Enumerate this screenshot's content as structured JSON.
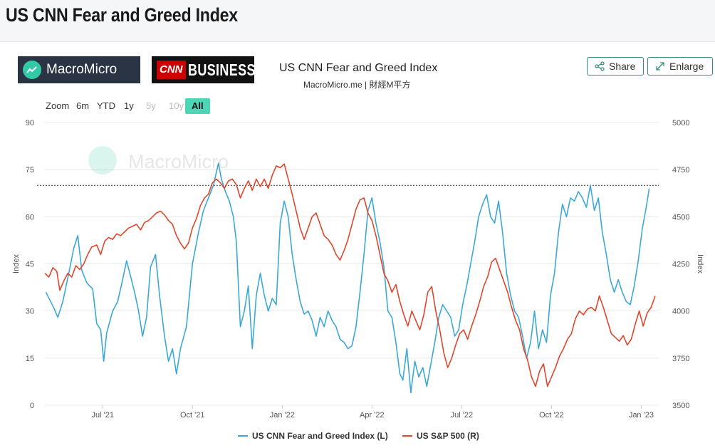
{
  "page": {
    "title": "US CNN Fear and Greed Index"
  },
  "header": {
    "logo_macromicro": "MacroMicro",
    "logo_cnn": "CNN",
    "logo_business": "BUSINESS",
    "share_label": "Share",
    "enlarge_label": "Enlarge"
  },
  "zoom": {
    "label": "Zoom",
    "options": [
      "6m",
      "YTD",
      "1y",
      "5y",
      "10y",
      "All"
    ],
    "selected": "All"
  },
  "colors": {
    "fear_greed": "#3ba8d8",
    "sp500": "#e0462b",
    "accent": "#4dd5b6"
  },
  "chart_data": {
    "type": "line",
    "title": "US CNN Fear and Greed Index",
    "subtitle": "MacroMicro.me | 財經M平方",
    "watermark": "MacroMicro",
    "x_labels": [
      "Jul '21",
      "Oct '21",
      "Jan '22",
      "Apr '22",
      "Jul '22",
      "Oct '22",
      "Jan '23"
    ],
    "x_range": [
      "2021-05",
      "2023-02"
    ],
    "y_left": {
      "label": "Index",
      "min": 0,
      "max": 90,
      "ticks": [
        0,
        15,
        30,
        45,
        60,
        75,
        90
      ]
    },
    "y_right": {
      "label": "Index",
      "min": 3500,
      "max": 5000,
      "ticks": [
        3500,
        3750,
        4000,
        4250,
        4500,
        4750,
        5000
      ]
    },
    "reference_line": {
      "axis": "left",
      "value": 70,
      "style": "dotted"
    },
    "series": [
      {
        "name": "US CNN Fear and Greed Index (L)",
        "axis": "left",
        "values": [
          [
            0.1,
            36
          ],
          [
            0.9,
            31
          ],
          [
            1.3,
            28
          ],
          [
            1.8,
            33
          ],
          [
            2.4,
            42
          ],
          [
            2.9,
            50
          ],
          [
            3.3,
            54
          ],
          [
            3.7,
            43
          ],
          [
            4.2,
            39
          ],
          [
            4.8,
            37
          ],
          [
            5.2,
            26
          ],
          [
            5.6,
            24
          ],
          [
            5.9,
            14
          ],
          [
            6.2,
            23
          ],
          [
            6.8,
            30
          ],
          [
            7.3,
            33
          ],
          [
            7.8,
            40
          ],
          [
            8.2,
            46
          ],
          [
            8.6,
            41
          ],
          [
            9.0,
            36
          ],
          [
            9.4,
            30
          ],
          [
            9.8,
            22
          ],
          [
            10.2,
            28
          ],
          [
            10.6,
            44
          ],
          [
            11.1,
            48
          ],
          [
            11.5,
            35
          ],
          [
            12.0,
            22
          ],
          [
            12.4,
            14
          ],
          [
            12.8,
            18
          ],
          [
            13.2,
            10
          ],
          [
            13.6,
            18
          ],
          [
            14.2,
            25
          ],
          [
            14.8,
            45
          ],
          [
            15.4,
            55
          ],
          [
            15.9,
            62
          ],
          [
            16.4,
            66
          ],
          [
            16.9,
            70
          ],
          [
            17.4,
            77
          ],
          [
            17.7,
            72
          ],
          [
            18.1,
            68
          ],
          [
            18.5,
            65
          ],
          [
            18.9,
            60
          ],
          [
            19.2,
            52
          ],
          [
            19.6,
            25
          ],
          [
            20.0,
            30
          ],
          [
            20.4,
            38
          ],
          [
            20.8,
            18
          ],
          [
            21.2,
            35
          ],
          [
            21.6,
            42
          ],
          [
            22.0,
            35
          ],
          [
            22.4,
            30
          ],
          [
            22.8,
            34
          ],
          [
            23.2,
            32
          ],
          [
            23.6,
            58
          ],
          [
            24.0,
            65
          ],
          [
            24.4,
            60
          ],
          [
            24.8,
            48
          ],
          [
            25.2,
            40
          ],
          [
            25.6,
            33
          ],
          [
            26.0,
            29
          ],
          [
            26.4,
            30
          ],
          [
            26.8,
            27
          ],
          [
            27.2,
            22
          ],
          [
            27.6,
            28
          ],
          [
            28.0,
            25
          ],
          [
            28.4,
            30
          ],
          [
            28.8,
            27
          ],
          [
            29.2,
            25
          ],
          [
            29.6,
            21
          ],
          [
            30.0,
            20
          ],
          [
            30.4,
            18
          ],
          [
            30.8,
            19
          ],
          [
            31.2,
            25
          ],
          [
            31.6,
            36
          ],
          [
            32.0,
            48
          ],
          [
            32.4,
            62
          ],
          [
            32.8,
            66
          ],
          [
            33.2,
            58
          ],
          [
            33.6,
            52
          ],
          [
            34.0,
            44
          ],
          [
            34.4,
            30
          ],
          [
            34.8,
            28
          ],
          [
            35.2,
            20
          ],
          [
            35.6,
            10
          ],
          [
            35.9,
            8
          ],
          [
            36.3,
            18
          ],
          [
            36.7,
            4
          ],
          [
            37.1,
            14
          ],
          [
            37.5,
            9
          ],
          [
            37.9,
            12
          ],
          [
            38.3,
            6
          ],
          [
            38.7,
            13
          ],
          [
            39.1,
            20
          ],
          [
            39.5,
            28
          ],
          [
            39.9,
            32
          ],
          [
            40.3,
            30
          ],
          [
            40.7,
            28
          ],
          [
            41.1,
            22
          ],
          [
            41.5,
            24
          ],
          [
            41.9,
            32
          ],
          [
            42.3,
            38
          ],
          [
            42.7,
            45
          ],
          [
            43.1,
            52
          ],
          [
            43.5,
            60
          ],
          [
            43.9,
            64
          ],
          [
            44.3,
            67
          ],
          [
            44.7,
            60
          ],
          [
            45.1,
            58
          ],
          [
            45.5,
            65
          ],
          [
            45.9,
            55
          ],
          [
            46.3,
            42
          ],
          [
            46.7,
            35
          ],
          [
            47.1,
            30
          ],
          [
            47.5,
            28
          ],
          [
            47.9,
            22
          ],
          [
            48.3,
            15
          ],
          [
            48.7,
            20
          ],
          [
            49.1,
            30
          ],
          [
            49.5,
            18
          ],
          [
            49.9,
            24
          ],
          [
            50.3,
            20
          ],
          [
            50.7,
            35
          ],
          [
            51.1,
            42
          ],
          [
            51.5,
            55
          ],
          [
            51.9,
            64
          ],
          [
            52.3,
            60
          ],
          [
            52.7,
            66
          ],
          [
            53.1,
            65
          ],
          [
            53.5,
            68
          ],
          [
            53.9,
            66
          ],
          [
            54.3,
            63
          ],
          [
            54.7,
            70
          ],
          [
            55.1,
            62
          ],
          [
            55.5,
            66
          ],
          [
            55.9,
            55
          ],
          [
            56.3,
            48
          ],
          [
            56.7,
            40
          ],
          [
            57.1,
            36
          ],
          [
            57.5,
            40
          ],
          [
            57.9,
            36
          ],
          [
            58.3,
            33
          ],
          [
            58.7,
            32
          ],
          [
            59.1,
            38
          ],
          [
            59.5,
            46
          ],
          [
            59.9,
            56
          ],
          [
            60.3,
            63
          ],
          [
            60.6,
            69
          ]
        ]
      },
      {
        "name": "US S&P 500 (R)",
        "axis": "right",
        "values": [
          [
            0.0,
            4200
          ],
          [
            0.4,
            4180
          ],
          [
            0.8,
            4230
          ],
          [
            1.2,
            4210
          ],
          [
            1.5,
            4110
          ],
          [
            1.9,
            4160
          ],
          [
            2.3,
            4200
          ],
          [
            2.7,
            4180
          ],
          [
            3.1,
            4240
          ],
          [
            3.5,
            4220
          ],
          [
            3.9,
            4250
          ],
          [
            4.3,
            4300
          ],
          [
            4.7,
            4340
          ],
          [
            5.2,
            4350
          ],
          [
            5.6,
            4300
          ],
          [
            6.0,
            4370
          ],
          [
            6.4,
            4390
          ],
          [
            6.8,
            4380
          ],
          [
            7.2,
            4410
          ],
          [
            7.6,
            4400
          ],
          [
            8.0,
            4420
          ],
          [
            8.4,
            4440
          ],
          [
            8.8,
            4450
          ],
          [
            9.2,
            4460
          ],
          [
            9.6,
            4430
          ],
          [
            10.0,
            4470
          ],
          [
            10.4,
            4480
          ],
          [
            10.8,
            4500
          ],
          [
            11.2,
            4520
          ],
          [
            11.6,
            4530
          ],
          [
            12.0,
            4510
          ],
          [
            12.4,
            4480
          ],
          [
            12.8,
            4460
          ],
          [
            13.2,
            4400
          ],
          [
            13.6,
            4360
          ],
          [
            14.0,
            4330
          ],
          [
            14.4,
            4360
          ],
          [
            14.8,
            4440
          ],
          [
            15.2,
            4490
          ],
          [
            15.6,
            4560
          ],
          [
            16.0,
            4600
          ],
          [
            16.4,
            4620
          ],
          [
            16.8,
            4680
          ],
          [
            17.2,
            4700
          ],
          [
            17.6,
            4680
          ],
          [
            18.0,
            4650
          ],
          [
            18.4,
            4690
          ],
          [
            18.8,
            4700
          ],
          [
            19.2,
            4670
          ],
          [
            19.6,
            4600
          ],
          [
            20.0,
            4650
          ],
          [
            20.4,
            4690
          ],
          [
            20.8,
            4640
          ],
          [
            21.2,
            4700
          ],
          [
            21.6,
            4660
          ],
          [
            22.0,
            4700
          ],
          [
            22.4,
            4650
          ],
          [
            22.8,
            4720
          ],
          [
            23.2,
            4770
          ],
          [
            23.6,
            4760
          ],
          [
            24.0,
            4780
          ],
          [
            24.4,
            4700
          ],
          [
            24.8,
            4620
          ],
          [
            25.2,
            4530
          ],
          [
            25.6,
            4440
          ],
          [
            26.0,
            4380
          ],
          [
            26.4,
            4440
          ],
          [
            26.8,
            4500
          ],
          [
            27.2,
            4520
          ],
          [
            27.6,
            4460
          ],
          [
            28.0,
            4400
          ],
          [
            28.4,
            4380
          ],
          [
            28.8,
            4350
          ],
          [
            29.2,
            4300
          ],
          [
            29.6,
            4270
          ],
          [
            30.0,
            4320
          ],
          [
            30.4,
            4380
          ],
          [
            30.8,
            4460
          ],
          [
            31.2,
            4540
          ],
          [
            31.6,
            4590
          ],
          [
            32.0,
            4600
          ],
          [
            32.4,
            4520
          ],
          [
            32.8,
            4480
          ],
          [
            33.2,
            4400
          ],
          [
            33.6,
            4300
          ],
          [
            34.0,
            4200
          ],
          [
            34.4,
            4160
          ],
          [
            34.8,
            4100
          ],
          [
            35.2,
            4140
          ],
          [
            35.6,
            4050
          ],
          [
            36.0,
            3980
          ],
          [
            36.4,
            3920
          ],
          [
            36.8,
            4000
          ],
          [
            37.2,
            3950
          ],
          [
            37.6,
            3900
          ],
          [
            38.0,
            3980
          ],
          [
            38.4,
            4100
          ],
          [
            38.8,
            4130
          ],
          [
            39.2,
            4000
          ],
          [
            39.6,
            3900
          ],
          [
            40.0,
            3780
          ],
          [
            40.4,
            3700
          ],
          [
            40.8,
            3750
          ],
          [
            41.2,
            3820
          ],
          [
            41.6,
            3880
          ],
          [
            42.0,
            3900
          ],
          [
            42.4,
            3850
          ],
          [
            42.8,
            3920
          ],
          [
            43.2,
            3980
          ],
          [
            43.6,
            4050
          ],
          [
            44.0,
            4130
          ],
          [
            44.4,
            4180
          ],
          [
            44.8,
            4260
          ],
          [
            45.2,
            4280
          ],
          [
            45.6,
            4220
          ],
          [
            46.0,
            4160
          ],
          [
            46.4,
            4100
          ],
          [
            46.8,
            4020
          ],
          [
            47.2,
            3950
          ],
          [
            47.6,
            3900
          ],
          [
            48.0,
            3800
          ],
          [
            48.4,
            3740
          ],
          [
            48.8,
            3650
          ],
          [
            49.2,
            3600
          ],
          [
            49.6,
            3680
          ],
          [
            50.0,
            3720
          ],
          [
            50.4,
            3600
          ],
          [
            50.8,
            3650
          ],
          [
            51.2,
            3700
          ],
          [
            51.6,
            3760
          ],
          [
            52.0,
            3800
          ],
          [
            52.4,
            3850
          ],
          [
            52.8,
            3880
          ],
          [
            53.2,
            3960
          ],
          [
            53.6,
            4000
          ],
          [
            54.0,
            3980
          ],
          [
            54.4,
            4010
          ],
          [
            54.8,
            4020
          ],
          [
            55.2,
            4000
          ],
          [
            55.6,
            4080
          ],
          [
            56.0,
            4020
          ],
          [
            56.4,
            3950
          ],
          [
            56.8,
            3880
          ],
          [
            57.2,
            3860
          ],
          [
            57.6,
            3840
          ],
          [
            58.0,
            3870
          ],
          [
            58.4,
            3820
          ],
          [
            58.8,
            3850
          ],
          [
            59.2,
            3930
          ],
          [
            59.6,
            4000
          ],
          [
            60.0,
            3920
          ],
          [
            60.4,
            3990
          ],
          [
            60.8,
            4020
          ],
          [
            61.2,
            4080
          ]
        ]
      }
    ]
  }
}
